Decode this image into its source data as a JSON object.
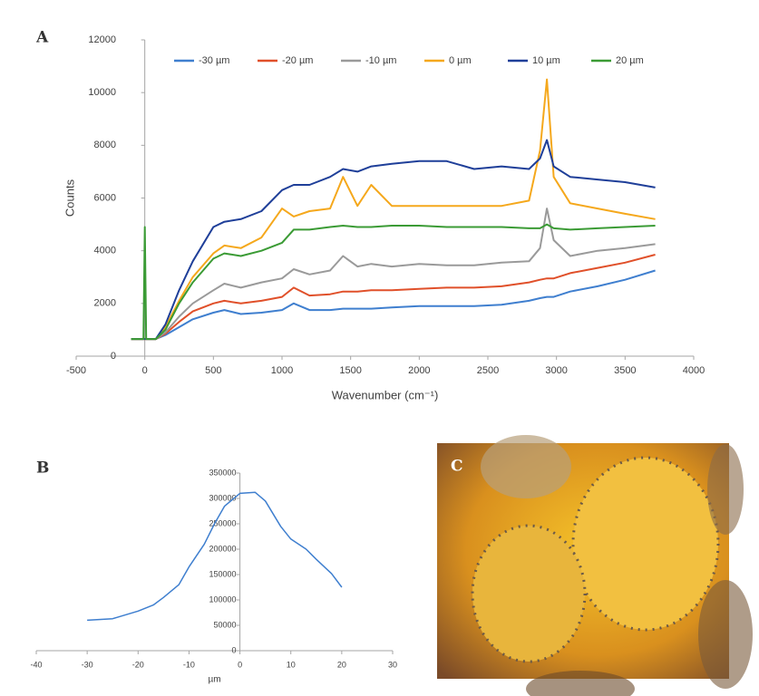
{
  "chart_data": [
    {
      "type": "line",
      "panel_label": "A",
      "y_label": "Counts",
      "x_label": "Wavenumber (cm⁻¹)",
      "x": [
        -100,
        -10,
        0,
        10,
        80,
        150,
        250,
        350,
        500,
        580,
        700,
        850,
        1000,
        1085,
        1200,
        1350,
        1445,
        1550,
        1650,
        1800,
        2000,
        2200,
        2400,
        2600,
        2800,
        2880,
        2930,
        2980,
        3100,
        3300,
        3500,
        3720
      ],
      "series": [
        {
          "name": "-30 µm",
          "color": "#3f7fcf",
          "values": [
            650,
            650,
            650,
            650,
            650,
            800,
            1100,
            1400,
            1650,
            1750,
            1600,
            1650,
            1750,
            2000,
            1750,
            1750,
            1800,
            1800,
            1800,
            1850,
            1900,
            1900,
            1900,
            1950,
            2100,
            2200,
            2250,
            2250,
            2450,
            2650,
            2900,
            3250
          ]
        },
        {
          "name": "-20 µm",
          "color": "#e0502a",
          "values": [
            650,
            650,
            650,
            650,
            650,
            850,
            1300,
            1700,
            2000,
            2100,
            2000,
            2100,
            2250,
            2600,
            2300,
            2350,
            2450,
            2450,
            2500,
            2500,
            2550,
            2600,
            2600,
            2650,
            2800,
            2900,
            2950,
            2950,
            3150,
            3350,
            3550,
            3850
          ]
        },
        {
          "name": "-10 µm",
          "color": "#9a9a9a",
          "values": [
            650,
            650,
            650,
            650,
            650,
            900,
            1500,
            2000,
            2500,
            2750,
            2600,
            2800,
            2950,
            3300,
            3100,
            3250,
            3800,
            3400,
            3500,
            3400,
            3500,
            3450,
            3450,
            3550,
            3600,
            4100,
            5600,
            4400,
            3800,
            4000,
            4100,
            4250
          ]
        },
        {
          "name": "0 µm",
          "color": "#f5a81c",
          "values": [
            650,
            650,
            650,
            650,
            650,
            1100,
            2100,
            3000,
            3900,
            4200,
            4100,
            4500,
            5600,
            5300,
            5500,
            5600,
            6800,
            5700,
            6500,
            5700,
            5700,
            5700,
            5700,
            5700,
            5900,
            7800,
            10500,
            6800,
            5800,
            5600,
            5400,
            5200
          ]
        },
        {
          "name": "10 µm",
          "color": "#1f3f99",
          "values": [
            650,
            650,
            650,
            650,
            650,
            1200,
            2500,
            3600,
            4900,
            5100,
            5200,
            5500,
            6300,
            6500,
            6500,
            6800,
            7100,
            7000,
            7200,
            7300,
            7400,
            7400,
            7100,
            7200,
            7100,
            7500,
            8200,
            7200,
            6800,
            6700,
            6600,
            6400
          ]
        },
        {
          "name": "20 µm",
          "color": "#3b9b35",
          "values": [
            650,
            650,
            4900,
            650,
            650,
            1000,
            2000,
            2800,
            3700,
            3900,
            3800,
            4000,
            4300,
            4800,
            4800,
            4900,
            4950,
            4900,
            4900,
            4950,
            4950,
            4900,
            4900,
            4900,
            4850,
            4850,
            5000,
            4850,
            4800,
            4850,
            4900,
            4950
          ]
        }
      ],
      "xlim": [
        -500,
        4000
      ],
      "xticks": [
        -500,
        0,
        500,
        1000,
        1500,
        2000,
        2500,
        3000,
        3500,
        4000
      ],
      "ylim": [
        0,
        12000
      ],
      "yticks": [
        0,
        2000,
        4000,
        6000,
        8000,
        10000,
        12000
      ],
      "legend": "top"
    },
    {
      "type": "line",
      "panel_label": "B",
      "x_label": "µm",
      "x": [
        -30,
        -25,
        -20,
        -17,
        -15,
        -12,
        -10,
        -7,
        -5,
        -3,
        0,
        3,
        5,
        8,
        10,
        13,
        15,
        18,
        20
      ],
      "values": [
        60000,
        63000,
        78000,
        90000,
        105000,
        130000,
        165000,
        210000,
        250000,
        285000,
        310000,
        312000,
        295000,
        245000,
        220000,
        200000,
        180000,
        152000,
        125000
      ],
      "color": "#3f7fcf",
      "xlim": [
        -40,
        30
      ],
      "xticks": [
        -40,
        -30,
        -20,
        -10,
        0,
        10,
        20,
        30
      ],
      "ylim": [
        0,
        350000
      ],
      "yticks": [
        0,
        50000,
        100000,
        150000,
        200000,
        250000,
        300000,
        350000
      ]
    }
  ],
  "image_panel": {
    "label": "C"
  }
}
